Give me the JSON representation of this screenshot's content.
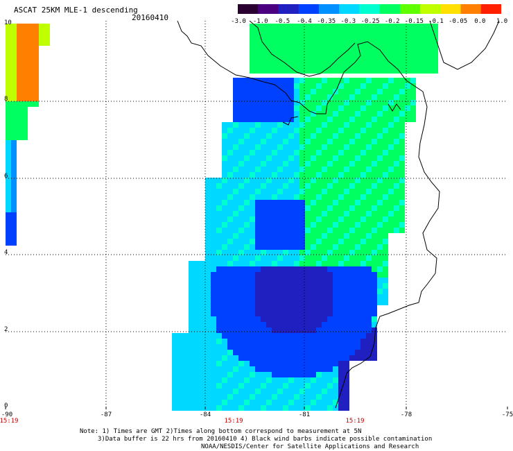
{
  "title": "ASCAT 25KM MLE-1 descending",
  "date": "20160410",
  "colorbar": {
    "labels": [
      "-3.0",
      "-1.0",
      "-0.5",
      "-0.4",
      "-0.35",
      "-0.3",
      "-0.25",
      "-0.2",
      "-0.15",
      "-0.1",
      "-0.05",
      "0.0",
      "1.0"
    ],
    "colors": [
      "#2a0030",
      "#4b0080",
      "#2020c0",
      "#0040ff",
      "#0090ff",
      "#00d8ff",
      "#00ffd0",
      "#00ff60",
      "#60ff00",
      "#c0ff00",
      "#ffe000",
      "#ff8000",
      "#ff2000"
    ]
  },
  "axes": {
    "x_ticks": [
      "-90",
      "-87",
      "-84",
      "-81",
      "-78",
      "-75"
    ],
    "y_ticks": [
      "10",
      "8",
      "6",
      "4",
      "2",
      "0"
    ]
  },
  "times": [
    "15:19",
    "15:19",
    "15:19"
  ],
  "notes": {
    "line1": "Note: 1) Times are GMT 2)Times along bottom correspond to measurement at 5N",
    "line2": "3)Data buffer is 22 hrs from 20160410 4) Black wind barbs indicate possible contamination",
    "line3": "NOAA/NESDIS/Center for Satellite Applications and Research"
  }
}
